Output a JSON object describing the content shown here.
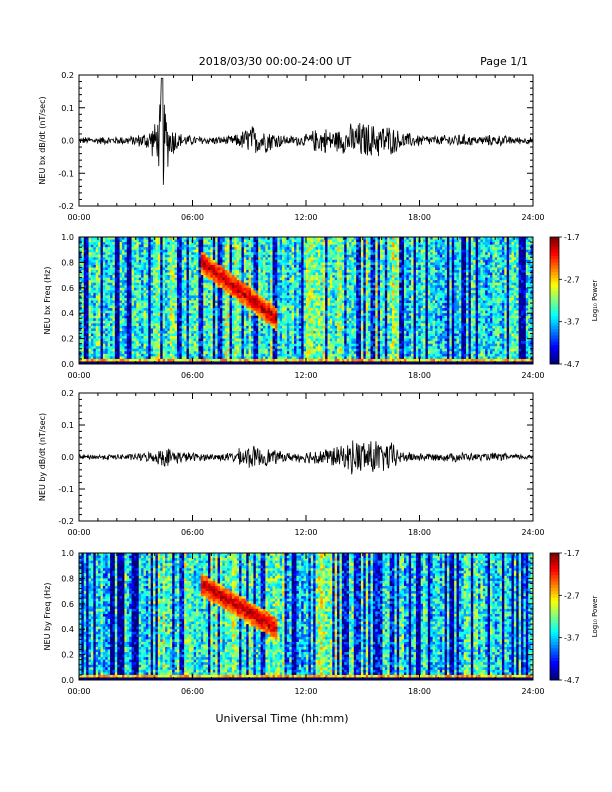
{
  "header": {
    "title": "2018/03/30  00:00-24:00 UT",
    "page": "Page 1/1"
  },
  "chart_data": [
    {
      "type": "line",
      "ylabel": "NEU bx dB/dt (nT/sec)",
      "ylim": [
        -0.2,
        0.2
      ],
      "yticks": [
        "0.2",
        "0.1",
        "0.0",
        "-0.1",
        "-0.2"
      ],
      "xlim_hours": [
        0,
        24
      ],
      "xticks": [
        "00:00",
        "06:00",
        "12:00",
        "18:00",
        "24:00"
      ],
      "series": [
        {
          "x_hours": [
            0,
            1,
            2,
            3,
            3.5,
            4,
            4.2,
            4.4,
            4.6,
            4.8,
            5,
            5.2,
            5.4,
            6,
            7,
            8,
            8.5,
            9,
            9.5,
            10,
            11,
            12,
            12.5,
            13,
            13.5,
            14,
            14.5,
            15,
            15.5,
            16,
            16.5,
            17,
            18,
            19,
            20,
            21,
            22,
            23,
            24
          ],
          "amplitude": [
            0.012,
            0.013,
            0.014,
            0.018,
            0.03,
            0.06,
            0.09,
            0.19,
            0.11,
            0.07,
            0.05,
            0.035,
            0.025,
            0.015,
            0.014,
            0.016,
            0.025,
            0.055,
            0.045,
            0.04,
            0.015,
            0.02,
            0.04,
            0.045,
            0.035,
            0.045,
            0.06,
            0.065,
            0.055,
            0.06,
            0.05,
            0.03,
            0.02,
            0.015,
            0.025,
            0.015,
            0.02,
            0.013,
            0.012
          ]
        }
      ]
    },
    {
      "type": "heatmap",
      "ylabel": "NEU bx Freq (Hz)",
      "ylim": [
        0.0,
        1.0
      ],
      "yticks": [
        "1.0",
        "0.8",
        "0.6",
        "0.4",
        "0.2",
        "0.0"
      ],
      "xlim_hours": [
        0,
        24
      ],
      "xticks": [
        "00:00",
        "06:00",
        "12:00",
        "18:00",
        "24:00"
      ],
      "colorbar": {
        "label": "Log₁₀ Power",
        "ticks": [
          "-1.7",
          "-2.7",
          "-3.7",
          "-4.7"
        ],
        "range": [
          -4.7,
          -1.7
        ]
      },
      "features": [
        {
          "t_hours": [
            6.5,
            10.5
          ],
          "freq_hz": [
            0.8,
            0.35
          ],
          "level": -1.9
        },
        {
          "t_hours": [
            0,
            24
          ],
          "freq_hz": [
            0.0,
            0.05
          ],
          "level": -2.4
        }
      ]
    },
    {
      "type": "line",
      "ylabel": "NEU by dB/dt (nT/sec)",
      "ylim": [
        -0.2,
        0.2
      ],
      "yticks": [
        "0.2",
        "0.1",
        "0.0",
        "-0.1",
        "-0.2"
      ],
      "xlim_hours": [
        0,
        24
      ],
      "xticks": [
        "00:00",
        "06:00",
        "12:00",
        "18:00",
        "24:00"
      ],
      "series": [
        {
          "x_hours": [
            0,
            1,
            2,
            3,
            4,
            4.5,
            5,
            6,
            7,
            8,
            8.5,
            9,
            9.5,
            10,
            11,
            12,
            12.5,
            13,
            13.5,
            14,
            14.5,
            15,
            15.5,
            16,
            16.5,
            17,
            18,
            19,
            20,
            21,
            22,
            23,
            24
          ],
          "amplitude": [
            0.008,
            0.009,
            0.01,
            0.012,
            0.02,
            0.035,
            0.025,
            0.015,
            0.012,
            0.015,
            0.03,
            0.04,
            0.035,
            0.03,
            0.015,
            0.02,
            0.03,
            0.03,
            0.035,
            0.04,
            0.06,
            0.065,
            0.07,
            0.05,
            0.055,
            0.02,
            0.015,
            0.012,
            0.018,
            0.012,
            0.015,
            0.01,
            0.009
          ]
        }
      ]
    },
    {
      "type": "heatmap",
      "ylabel": "NEU by Freq (Hz)",
      "ylim": [
        0.0,
        1.0
      ],
      "yticks": [
        "1.0",
        "0.8",
        "0.6",
        "0.4",
        "0.2",
        "0.0"
      ],
      "xlim_hours": [
        0,
        24
      ],
      "xticks": [
        "00:00",
        "06:00",
        "12:00",
        "18:00",
        "24:00"
      ],
      "colorbar": {
        "label": "Log₁₀ Power",
        "ticks": [
          "-1.7",
          "-2.7",
          "-3.7",
          "-4.7"
        ],
        "range": [
          -4.7,
          -1.7
        ]
      },
      "features": [
        {
          "t_hours": [
            6.5,
            10.5
          ],
          "freq_hz": [
            0.75,
            0.4
          ],
          "level": -2.0
        },
        {
          "t_hours": [
            0,
            24
          ],
          "freq_hz": [
            0.0,
            0.05
          ],
          "level": -2.6
        }
      ]
    }
  ],
  "footer": {
    "xlabel": "Universal Time (hh:mm)"
  }
}
